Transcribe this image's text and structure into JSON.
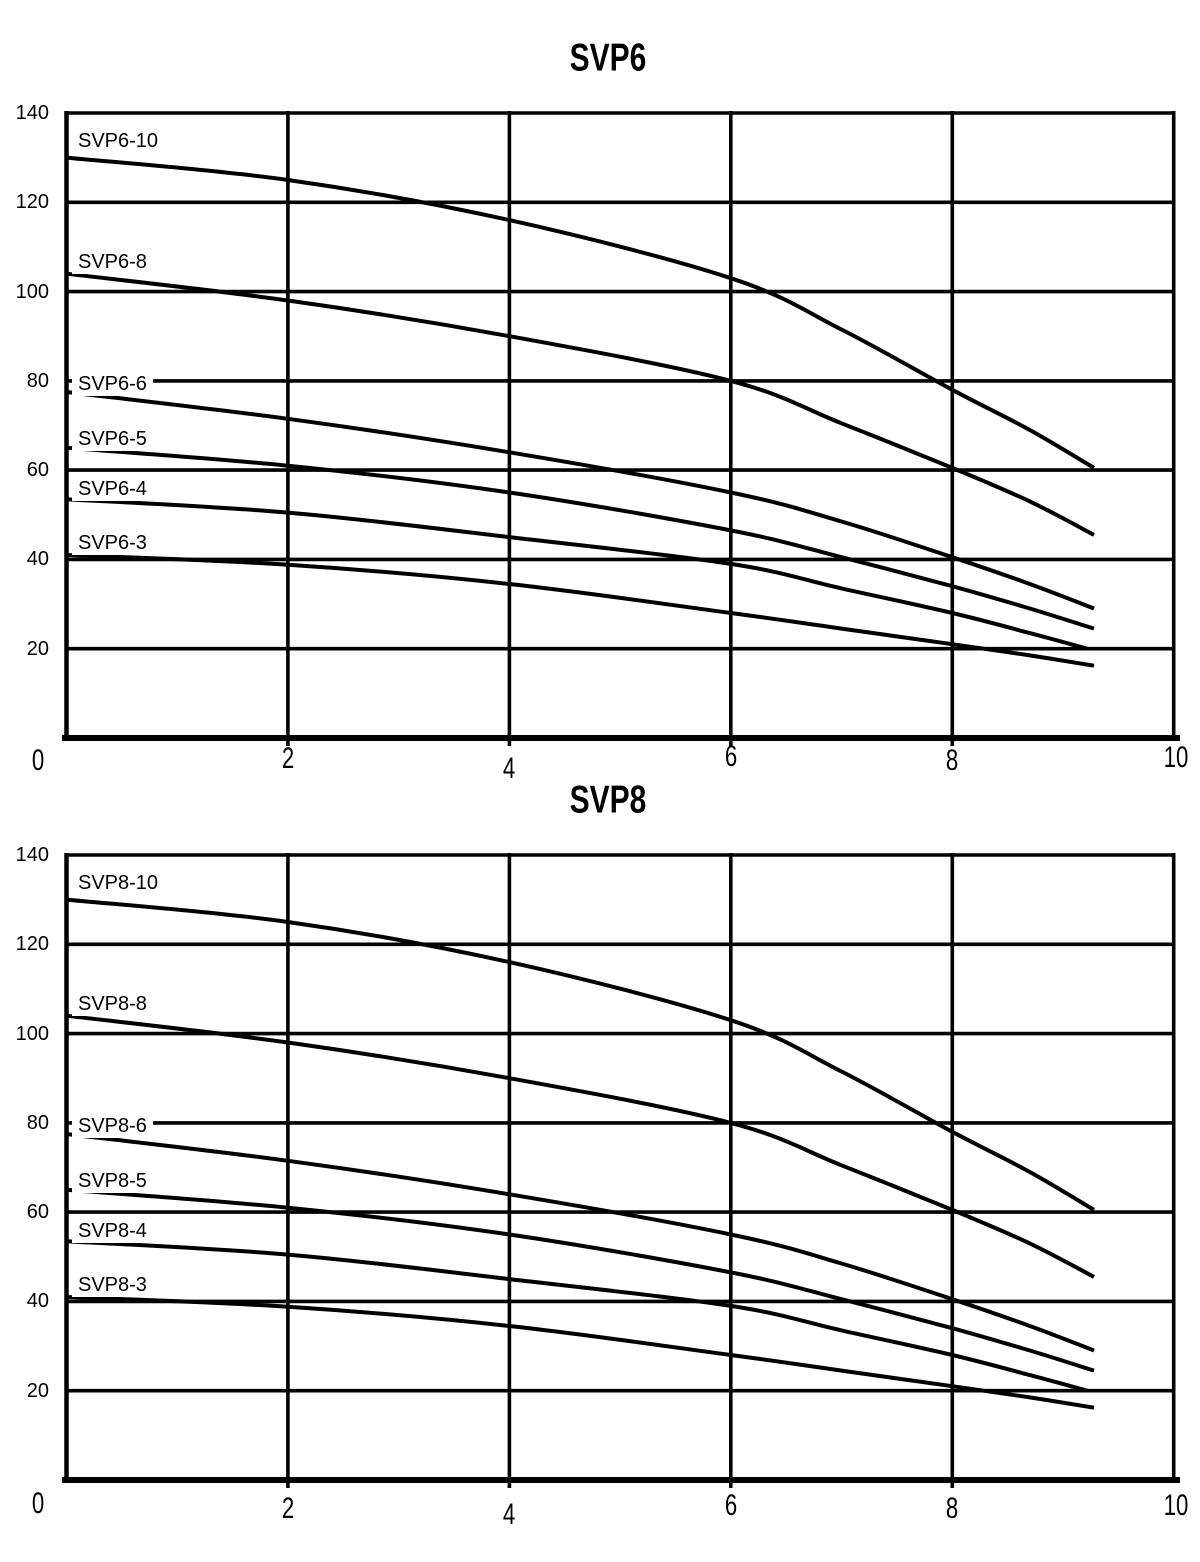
{
  "figure": {
    "description": "Two stacked pump performance curve charts",
    "background": "#ffffff",
    "line_color": "#000000",
    "text_color": "#000000"
  },
  "chart_data": [
    {
      "type": "line",
      "title": "SVP6",
      "xlim": [
        0,
        10
      ],
      "ylim": [
        0,
        140
      ],
      "x_ticks": [
        0,
        2,
        4,
        6,
        8,
        10
      ],
      "y_ticks": [
        140,
        120,
        100,
        80,
        60,
        40,
        20
      ],
      "grid": true,
      "legend_position": "labels-inside-plot",
      "series": [
        {
          "name": "SVP6-10",
          "points": [
            [
              0,
              130
            ],
            [
              2,
              125
            ],
            [
              4,
              116
            ],
            [
              6,
              103
            ],
            [
              7,
              91.5
            ],
            [
              8,
              78
            ],
            [
              8.7,
              69
            ],
            [
              9.28,
              60.5
            ]
          ]
        },
        {
          "name": "SVP6-8",
          "points": [
            [
              0,
              104
            ],
            [
              2,
              98
            ],
            [
              4,
              90
            ],
            [
              6,
              80
            ],
            [
              7,
              70.5
            ],
            [
              8,
              60.5
            ],
            [
              8.7,
              53
            ],
            [
              9.28,
              45.5
            ]
          ]
        },
        {
          "name": "SVP6-6",
          "points": [
            [
              0,
              77.5
            ],
            [
              2,
              71.5
            ],
            [
              4,
              64
            ],
            [
              6,
              55
            ],
            [
              7,
              48.5
            ],
            [
              8,
              40.5
            ],
            [
              8.7,
              34.5
            ],
            [
              9.28,
              29
            ]
          ]
        },
        {
          "name": "SVP6-5",
          "points": [
            [
              0,
              65
            ],
            [
              2,
              61
            ],
            [
              4,
              55
            ],
            [
              6,
              46.5
            ],
            [
              7,
              40.5
            ],
            [
              8,
              34
            ],
            [
              8.7,
              29
            ],
            [
              9.28,
              24.5
            ]
          ]
        },
        {
          "name": "SVP6-4",
          "points": [
            [
              0,
              53.5
            ],
            [
              2,
              50.5
            ],
            [
              4,
              45
            ],
            [
              6,
              39
            ],
            [
              7,
              33.5
            ],
            [
              8,
              28
            ],
            [
              8.7,
              23.5
            ],
            [
              9.22,
              20
            ]
          ]
        },
        {
          "name": "SVP6-3",
          "points": [
            [
              0,
              41
            ],
            [
              2,
              38.8
            ],
            [
              4,
              34.5
            ],
            [
              6,
              28
            ],
            [
              7,
              24.5
            ],
            [
              8,
              21
            ],
            [
              8.7,
              18.5
            ],
            [
              9.28,
              16.2
            ]
          ]
        }
      ]
    },
    {
      "type": "line",
      "title": "SVP8",
      "xlim": [
        0,
        10
      ],
      "ylim": [
        0,
        140
      ],
      "x_ticks": [
        0,
        2,
        4,
        6,
        8,
        10
      ],
      "y_ticks": [
        140,
        120,
        100,
        80,
        60,
        40,
        20
      ],
      "grid": true,
      "legend_position": "labels-inside-plot",
      "series": [
        {
          "name": "SVP8-10",
          "points": [
            [
              0,
              130
            ],
            [
              2,
              125
            ],
            [
              4,
              116
            ],
            [
              6,
              103
            ],
            [
              7,
              91.5
            ],
            [
              8,
              78
            ],
            [
              8.7,
              69
            ],
            [
              9.28,
              60.5
            ]
          ]
        },
        {
          "name": "SVP8-8",
          "points": [
            [
              0,
              104
            ],
            [
              2,
              98
            ],
            [
              4,
              90
            ],
            [
              6,
              80
            ],
            [
              7,
              70.5
            ],
            [
              8,
              60.5
            ],
            [
              8.7,
              53
            ],
            [
              9.28,
              45.5
            ]
          ]
        },
        {
          "name": "SVP8-6",
          "points": [
            [
              0,
              77.5
            ],
            [
              2,
              71.5
            ],
            [
              4,
              64
            ],
            [
              6,
              55
            ],
            [
              7,
              48.5
            ],
            [
              8,
              40.5
            ],
            [
              8.7,
              34.5
            ],
            [
              9.28,
              29
            ]
          ]
        },
        {
          "name": "SVP8-5",
          "points": [
            [
              0,
              65
            ],
            [
              2,
              61
            ],
            [
              4,
              55
            ],
            [
              6,
              46.5
            ],
            [
              7,
              40.5
            ],
            [
              8,
              34
            ],
            [
              8.7,
              29
            ],
            [
              9.28,
              24.5
            ]
          ]
        },
        {
          "name": "SVP8-4",
          "points": [
            [
              0,
              53.5
            ],
            [
              2,
              50.5
            ],
            [
              4,
              45
            ],
            [
              6,
              39
            ],
            [
              7,
              33.5
            ],
            [
              8,
              28
            ],
            [
              8.7,
              23.5
            ],
            [
              9.22,
              20
            ]
          ]
        },
        {
          "name": "SVP8-3",
          "points": [
            [
              0,
              41
            ],
            [
              2,
              38.8
            ],
            [
              4,
              34.5
            ],
            [
              6,
              28
            ],
            [
              7,
              24.5
            ],
            [
              8,
              21
            ],
            [
              8.7,
              18.5
            ],
            [
              9.28,
              16.2
            ]
          ]
        }
      ]
    }
  ]
}
